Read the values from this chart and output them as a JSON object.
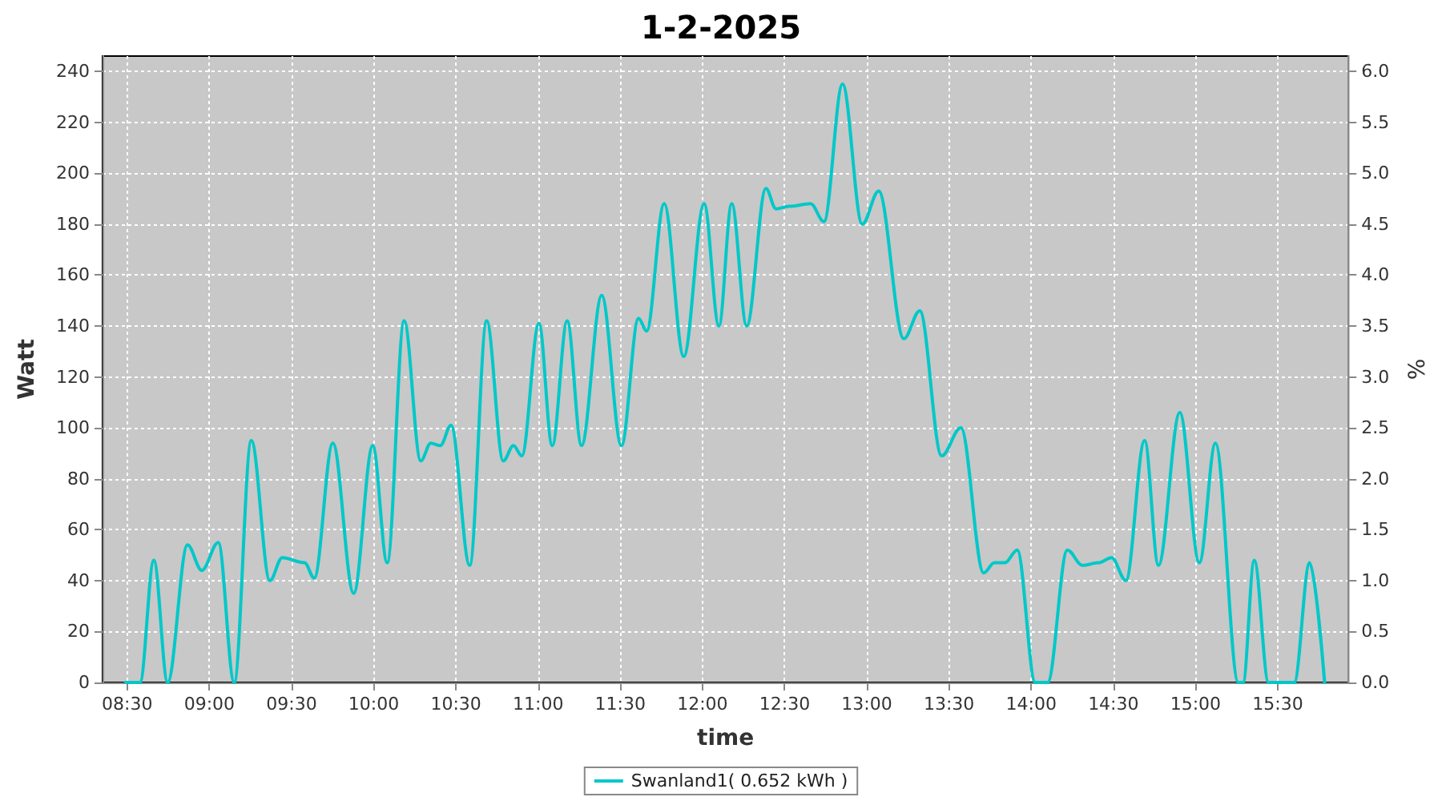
{
  "chart_data": {
    "type": "line",
    "title": "1-2-2025",
    "xlabel": "time",
    "ylabel": "Watt",
    "y2label": "%",
    "xlim": [
      8.35,
      15.93
    ],
    "xticks": [
      {
        "value": 8.5,
        "label": "08:30"
      },
      {
        "value": 9,
        "label": "09:00"
      },
      {
        "value": 9.5,
        "label": "09:30"
      },
      {
        "value": 10,
        "label": "10:00"
      },
      {
        "value": 10.5,
        "label": "10:30"
      },
      {
        "value": 11,
        "label": "11:00"
      },
      {
        "value": 11.5,
        "label": "11:30"
      },
      {
        "value": 12,
        "label": "12:00"
      },
      {
        "value": 12.5,
        "label": "12:30"
      },
      {
        "value": 13,
        "label": "13:00"
      },
      {
        "value": 13.5,
        "label": "13:30"
      },
      {
        "value": 14,
        "label": "14:00"
      },
      {
        "value": 14.5,
        "label": "14:30"
      },
      {
        "value": 15,
        "label": "15:00"
      },
      {
        "value": 15.5,
        "label": "15:30"
      }
    ],
    "ylim": [
      0,
      246
    ],
    "yticks": [
      0,
      20,
      40,
      60,
      80,
      100,
      120,
      140,
      160,
      180,
      200,
      220,
      240
    ],
    "y2lim": [
      0,
      6.15
    ],
    "y2ticks": [
      {
        "value": 0,
        "label": "0.0"
      },
      0.5,
      {
        "value": 1,
        "label": "1.0"
      },
      1.5,
      {
        "value": 2,
        "label": "2.0"
      },
      2.5,
      {
        "value": 3,
        "label": "3.0"
      },
      3.5,
      {
        "value": 4,
        "label": "4.0"
      },
      4.5,
      {
        "value": 5,
        "label": "5.0"
      },
      5.5,
      {
        "value": 6,
        "label": "6.0"
      }
    ],
    "grid": true,
    "legend": "bottom",
    "marker": "none",
    "line_style": "solid",
    "series": [
      {
        "name": "Swanland1( 0.652 kWh )",
        "color": "#00c8c8",
        "x": [
          8.49,
          8.578,
          8.662,
          8.746,
          8.867,
          8.954,
          9.054,
          9.151,
          9.255,
          9.368,
          9.443,
          9.579,
          9.638,
          9.751,
          9.878,
          9.994,
          10.082,
          10.185,
          10.286,
          10.347,
          10.405,
          10.47,
          10.584,
          10.687,
          10.788,
          10.85,
          10.901,
          11.005,
          11.086,
          11.177,
          11.264,
          11.387,
          11.507,
          11.611,
          11.66,
          11.767,
          11.886,
          12.01,
          12.1,
          12.178,
          12.269,
          12.386,
          12.447,
          12.528,
          12.658,
          12.739,
          12.852,
          12.972,
          13.072,
          13.225,
          13.322,
          13.455,
          13.572,
          13.711,
          13.776,
          13.84,
          13.915,
          14.025,
          14.1,
          14.22,
          14.311,
          14.408,
          14.489,
          14.576,
          14.69,
          14.774,
          14.904,
          15.023,
          15.121,
          15.26,
          15.289,
          15.357,
          15.444,
          15.6,
          15.694,
          15.785
        ],
        "values": [
          0,
          0,
          48,
          0,
          54,
          44,
          55,
          0,
          95,
          40,
          49,
          47,
          41,
          94,
          35,
          93,
          47,
          142,
          87,
          94,
          93,
          101,
          46,
          142,
          87,
          93,
          89,
          141,
          93,
          142,
          93,
          152,
          93,
          143,
          138,
          188,
          128,
          188,
          140,
          188,
          140,
          194,
          186,
          187,
          188,
          181,
          235,
          180,
          193,
          135,
          146,
          89,
          100,
          43,
          47,
          47,
          52,
          0,
          0,
          52,
          46,
          47,
          49,
          40,
          95,
          46,
          106,
          47,
          94,
          0,
          0,
          48,
          0,
          0,
          47,
          0
        ]
      }
    ]
  }
}
